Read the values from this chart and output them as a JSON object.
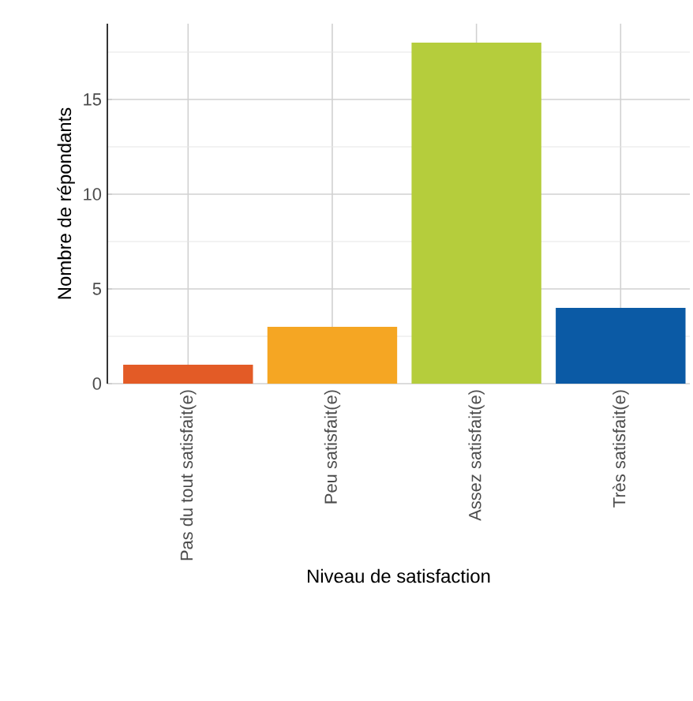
{
  "chart_data": {
    "type": "bar",
    "xlabel": "Niveau de satisfaction",
    "ylabel": "Nombre de répondants",
    "categories": [
      "Pas du tout satisfait(e)",
      "Peu satisfait(e)",
      "Assez satisfait(e)",
      "Très satisfait(e)"
    ],
    "values": [
      1,
      3,
      18,
      4
    ],
    "colors": [
      "#e35b26",
      "#f5a623",
      "#b5cd3c",
      "#0b5aa5"
    ],
    "ylim": [
      0,
      19
    ],
    "yticks": [
      0,
      5,
      10,
      15
    ],
    "grid": true
  }
}
